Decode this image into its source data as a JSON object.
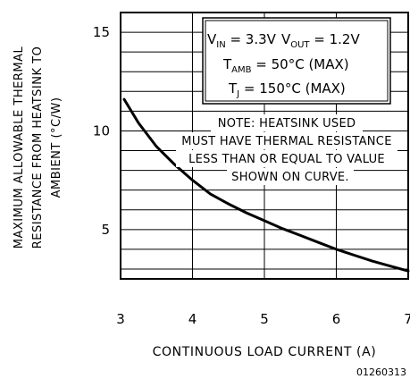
{
  "chart_data": {
    "type": "line",
    "title": "",
    "xlabel": "CONTINUOUS LOAD CURRENT (A)",
    "ylabel_lines": [
      "MAXIMUM ALLOWABLE THERMAL",
      "RESISTANCE FROM HEATSINK TO",
      "AMBIENT (°C/W)"
    ],
    "xlim": [
      3,
      7
    ],
    "ylim": [
      2.5,
      16
    ],
    "x_ticks": [
      "3",
      "4",
      "5",
      "6",
      "7"
    ],
    "y_ticks": [
      "5",
      "10",
      "15"
    ],
    "grid": true,
    "conditions": {
      "vin": {
        "sym": "V",
        "sub": "IN",
        "text": " = 3.3V"
      },
      "vout": {
        "sym": "V",
        "sub": "OUT",
        "text": " = 1.2V"
      },
      "tamb": {
        "sym": "T",
        "sub": "AMB",
        "text": " = 50°C (MAX)"
      },
      "tj": {
        "sym": "T",
        "sub": "J",
        "text": " = 150°C (MAX)"
      }
    },
    "note_lines": [
      "NOTE: HEATSINK USED",
      "MUST HAVE THERMAL RESISTANCE",
      "LESS THAN OR EQUAL TO VALUE",
      "SHOWN ON CURVE."
    ],
    "series": [
      {
        "x": [
          3.05,
          3.25,
          3.5,
          3.75,
          4.0,
          4.25,
          4.5,
          4.75,
          5.0,
          5.25,
          5.5,
          5.75,
          6.0,
          6.25,
          6.5,
          6.75,
          7.0
        ],
        "values": [
          11.6,
          10.4,
          9.2,
          8.3,
          7.5,
          6.8,
          6.3,
          5.85,
          5.45,
          5.05,
          4.7,
          4.35,
          4.0,
          3.7,
          3.4,
          3.15,
          2.9
        ]
      }
    ],
    "figure_id": "01260313"
  }
}
